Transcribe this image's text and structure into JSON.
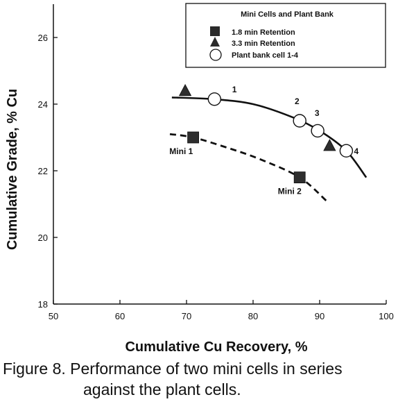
{
  "chart_data": {
    "type": "scatter",
    "xlabel": "Cumulative Cu Recovery, %",
    "ylabel": "Cumulative Grade, % Cu",
    "xlim": [
      50,
      100
    ],
    "ylim": [
      18,
      27
    ],
    "x_ticks": [
      50,
      60,
      70,
      80,
      90,
      100
    ],
    "y_ticks": [
      18,
      20,
      22,
      24,
      26
    ],
    "grid": false,
    "legend": {
      "title": "Mini Cells and Plant Bank",
      "placement": "top-right",
      "entries": [
        {
          "label": "1.8 min Retention",
          "marker": "square"
        },
        {
          "label": "3.3 min Retention",
          "marker": "triangle"
        },
        {
          "label": "Plant bank cell 1-4",
          "marker": "circle"
        }
      ]
    },
    "series": [
      {
        "marker": "square",
        "points": [
          {
            "x": 71,
            "y": 23.0
          },
          {
            "x": 87,
            "y": 21.8
          }
        ]
      },
      {
        "marker": "triangle",
        "points": [
          {
            "x": 69.8,
            "y": 24.4
          },
          {
            "x": 91.5,
            "y": 22.75
          }
        ]
      },
      {
        "marker": "circle",
        "points": [
          {
            "x": 74.2,
            "y": 24.15
          },
          {
            "x": 87,
            "y": 23.5
          },
          {
            "x": 89.7,
            "y": 23.2
          },
          {
            "x": 94,
            "y": 22.6
          }
        ]
      }
    ],
    "trend_lines": [
      {
        "style": "solid",
        "points": [
          {
            "x": 67.8,
            "y": 24.2
          },
          {
            "x": 74,
            "y": 24.15
          },
          {
            "x": 80,
            "y": 24.0
          },
          {
            "x": 86,
            "y": 23.6
          },
          {
            "x": 90,
            "y": 23.2
          },
          {
            "x": 94,
            "y": 22.6
          },
          {
            "x": 97,
            "y": 21.8
          }
        ]
      },
      {
        "style": "dashed",
        "points": [
          {
            "x": 67.5,
            "y": 23.1
          },
          {
            "x": 71,
            "y": 23.0
          },
          {
            "x": 76,
            "y": 22.7
          },
          {
            "x": 81,
            "y": 22.35
          },
          {
            "x": 87,
            "y": 21.8
          },
          {
            "x": 91,
            "y": 21.1
          }
        ]
      }
    ],
    "annotations": [
      {
        "text": "Mini 1",
        "x": 69.2,
        "y": 22.5
      },
      {
        "text": "Mini 2",
        "x": 85.5,
        "y": 21.3
      },
      {
        "text": "1",
        "x": 77.2,
        "y": 24.35
      },
      {
        "text": "2",
        "x": 86.6,
        "y": 24.0
      },
      {
        "text": "3",
        "x": 89.6,
        "y": 23.65
      },
      {
        "text": "4",
        "x": 95.5,
        "y": 22.5
      }
    ]
  },
  "caption": {
    "line1": "Figure 8.  Performance of two mini cells in series",
    "line2": "against the plant cells."
  }
}
